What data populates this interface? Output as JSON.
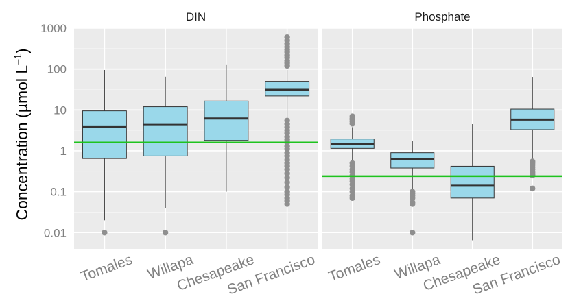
{
  "chart_data": {
    "type": "box",
    "facets": [
      "DIN",
      "Phosphate"
    ],
    "categories": [
      "Tomales",
      "Willapa",
      "Chesapeake",
      "San Francisco"
    ],
    "ylabel": {
      "main": "Concentration (µmol L",
      "sup": "–1",
      "close": ")"
    },
    "yscale": "log10",
    "ylim": [
      0.004,
      1000
    ],
    "yticks": [
      0.01,
      0.1,
      1,
      10,
      100,
      1000
    ],
    "ytick_labels": [
      "0.01",
      "0.1",
      "1",
      "10",
      "100",
      "1000"
    ],
    "grid": true,
    "colors": {
      "box_fill": "#9ad8ea",
      "reference_line": "#1ec31e",
      "outlier": "#8f8f8f"
    },
    "panels": [
      {
        "facet": "DIN",
        "reference_line": 1.6,
        "boxes": [
          {
            "category": "Tomales",
            "min": 0.02,
            "q1": 0.65,
            "median": 3.8,
            "q3": 9.5,
            "max": 95,
            "outliers": [
              0.01
            ]
          },
          {
            "category": "Willapa",
            "min": 0.04,
            "q1": 0.75,
            "median": 4.3,
            "q3": 12,
            "max": 65,
            "outliers": [
              0.01
            ]
          },
          {
            "category": "Chesapeake",
            "min": 0.1,
            "q1": 1.8,
            "median": 6.2,
            "q3": 16.5,
            "max": 125,
            "outliers": []
          },
          {
            "category": "San Francisco",
            "min": 6,
            "q1": 22,
            "median": 31,
            "q3": 50,
            "max": 95,
            "outliers": [
              600,
              500,
              420,
              350,
              300,
              260,
              220,
              190,
              160,
              140,
              120,
              5.5,
              4.5,
              3.8,
              3.2,
              2.7,
              2.2,
              1.9,
              1.6,
              1.3,
              1.1,
              0.9,
              0.75,
              0.6,
              0.5,
              0.42,
              0.35,
              0.28,
              0.22,
              0.17,
              0.13,
              0.1,
              0.085,
              0.07,
              0.06,
              0.05
            ]
          }
        ]
      },
      {
        "facet": "Phosphate",
        "reference_line": 0.24,
        "boxes": [
          {
            "category": "Tomales",
            "min": 0.55,
            "q1": 1.15,
            "median": 1.5,
            "q3": 1.95,
            "max": 3.8,
            "outliers": [
              7,
              6.3,
              5.8,
              5.2,
              4.6,
              0.5,
              0.42,
              0.35,
              0.3,
              0.25,
              0.21,
              0.18,
              0.15,
              0.12,
              0.1,
              0.08,
              0.07
            ]
          },
          {
            "category": "Willapa",
            "min": 0.11,
            "q1": 0.38,
            "median": 0.62,
            "q3": 0.9,
            "max": 1.75,
            "outliers": [
              0.1,
              0.09,
              0.08,
              0.07,
              0.055,
              0.05,
              0.01
            ]
          },
          {
            "category": "Chesapeake",
            "min": 0.0065,
            "q1": 0.07,
            "median": 0.14,
            "q3": 0.42,
            "max": 4.5,
            "outliers": []
          },
          {
            "category": "San Francisco",
            "min": 0.6,
            "q1": 3.3,
            "median": 5.8,
            "q3": 10.5,
            "max": 62,
            "outliers": [
              0.55,
              0.5,
              0.45,
              0.4,
              0.35,
              0.3,
              0.27,
              0.25,
              0.12
            ]
          }
        ]
      }
    ]
  }
}
